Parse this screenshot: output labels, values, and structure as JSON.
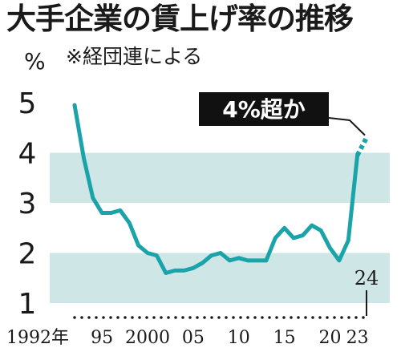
{
  "title": "大手企業の賃上げ率の推移",
  "subtitle": "※経団連による",
  "colors": {
    "band": "#cfe6e6",
    "line": "#1aa3a8",
    "text": "#1a1a1a",
    "callout_bg": "#111111",
    "callout_text": "#ffffff"
  },
  "chart_data": {
    "type": "line",
    "title": "大手企業の賃上げ率の推移",
    "subtitle": "※経団連による",
    "ylabel": "%",
    "ylim": [
      1,
      5
    ],
    "y_ticks": [
      "1",
      "2",
      "3",
      "4",
      "5"
    ],
    "x_tick_labels": [
      {
        "year": 1992,
        "label": "1992年"
      },
      {
        "year": 1995,
        "label": "95"
      },
      {
        "year": 2000,
        "label": "2000"
      },
      {
        "year": 2005,
        "label": "05"
      },
      {
        "year": 2010,
        "label": "10"
      },
      {
        "year": 2015,
        "label": "15"
      },
      {
        "year": 2020,
        "label": "20"
      },
      {
        "year": 2023,
        "label": "23"
      }
    ],
    "shaded_bands": [
      [
        1,
        2
      ],
      [
        3,
        4
      ]
    ],
    "series": [
      {
        "x": [
          1992,
          1993,
          1994,
          1995,
          1996,
          1997,
          1998,
          1999,
          2000,
          2001,
          2002,
          2003,
          2004,
          2005,
          2006,
          2007,
          2008,
          2009,
          2010,
          2011,
          2012,
          2013,
          2014,
          2015,
          2016,
          2017,
          2018,
          2019,
          2020,
          2021,
          2022,
          2023
        ],
        "values": [
          4.95,
          3.9,
          3.1,
          2.8,
          2.8,
          2.85,
          2.6,
          2.15,
          2.0,
          1.95,
          1.6,
          1.65,
          1.65,
          1.7,
          1.8,
          1.95,
          2.0,
          1.85,
          1.9,
          1.85,
          1.85,
          1.85,
          2.3,
          2.5,
          2.3,
          2.35,
          2.55,
          2.45,
          2.1,
          1.85,
          2.25,
          3.95
        ]
      }
    ],
    "projection": {
      "x": [
        2023,
        2024
      ],
      "values": [
        3.95,
        4.3
      ],
      "style": "dotted"
    },
    "annotations": [
      {
        "text": "4%超か",
        "target_year": 2024
      },
      {
        "text": "24",
        "target_year": 2024
      }
    ]
  }
}
